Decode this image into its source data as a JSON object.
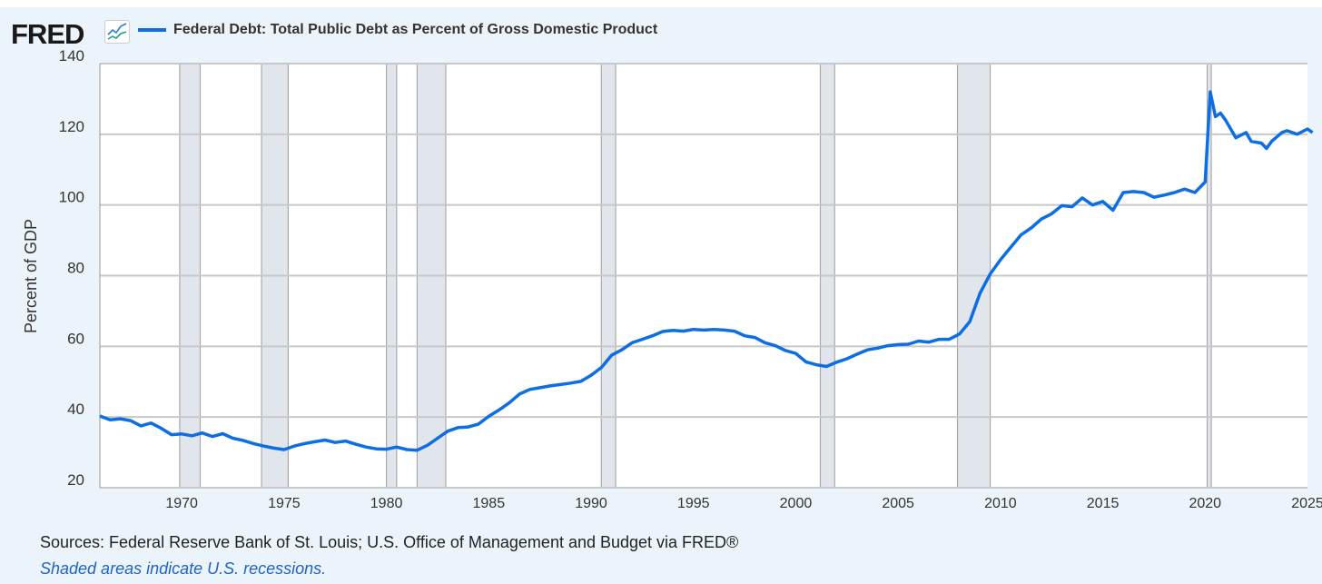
{
  "logo": "FRED",
  "colors": {
    "line": "#0d6ee4",
    "recession": "#e1e6ec",
    "background": "#ebf3fb"
  },
  "footer": {
    "sources": "Sources: Federal Reserve Bank of St. Louis; U.S. Office of Management and Budget via FRED®",
    "note": "Shaded areas indicate U.S. recessions."
  },
  "chart_data": {
    "type": "line",
    "title": "Federal Debt: Total Public Debt as Percent of Gross Domestic Product",
    "xlabel": "",
    "ylabel": "Percent of GDP",
    "xlim": [
      1966,
      2025
    ],
    "ylim": [
      20,
      140
    ],
    "xticks": [
      1970,
      1975,
      1980,
      1985,
      1990,
      1995,
      2000,
      2005,
      2010,
      2015,
      2020,
      2025
    ],
    "yticks": [
      20,
      40,
      60,
      80,
      100,
      120,
      140
    ],
    "grid": true,
    "legend": "top-left",
    "recessions": [
      [
        1969.9,
        1970.9
      ],
      [
        1973.9,
        1975.2
      ],
      [
        1980.0,
        1980.5
      ],
      [
        1981.5,
        1982.9
      ],
      [
        1990.5,
        1991.2
      ],
      [
        2001.2,
        2001.9
      ],
      [
        2007.9,
        2009.5
      ],
      [
        2020.1,
        2020.3
      ]
    ],
    "series": [
      {
        "name": "Federal Debt: Total Public Debt as Percent of Gross Domestic Product",
        "x": [
          1966,
          1966.5,
          1967,
          1967.5,
          1968,
          1968.5,
          1969,
          1969.5,
          1970,
          1970.5,
          1971,
          1971.5,
          1972,
          1972.5,
          1973,
          1973.5,
          1974,
          1974.5,
          1975,
          1975.5,
          1976,
          1976.5,
          1977,
          1977.5,
          1978,
          1978.5,
          1979,
          1979.5,
          1980,
          1980.5,
          1981,
          1981.5,
          1982,
          1982.5,
          1983,
          1983.5,
          1984,
          1984.5,
          1985,
          1985.5,
          1986,
          1986.5,
          1987,
          1987.5,
          1988,
          1988.5,
          1989,
          1989.5,
          1990,
          1990.5,
          1991,
          1991.5,
          1992,
          1992.5,
          1993,
          1993.5,
          1994,
          1994.5,
          1995,
          1995.5,
          1996,
          1996.5,
          1997,
          1997.5,
          1998,
          1998.5,
          1999,
          1999.5,
          2000,
          2000.5,
          2001,
          2001.5,
          2002,
          2002.5,
          2003,
          2003.5,
          2004,
          2004.5,
          2005,
          2005.5,
          2006,
          2006.5,
          2007,
          2007.5,
          2008,
          2008.5,
          2009,
          2009.5,
          2010,
          2010.5,
          2011,
          2011.5,
          2012,
          2012.5,
          2013,
          2013.5,
          2014,
          2014.5,
          2015,
          2015.5,
          2016,
          2016.5,
          2017,
          2017.5,
          2018,
          2018.5,
          2019,
          2019.5,
          2020,
          2020.25,
          2020.5,
          2020.75,
          2021,
          2021.5,
          2022,
          2022.25,
          2022.75,
          2023,
          2023.25,
          2023.75,
          2024,
          2024.5,
          2025,
          2025.25
        ],
        "values": [
          40.3,
          39.2,
          39.5,
          39,
          37.5,
          38.3,
          36.8,
          35,
          35.2,
          34.7,
          35.5,
          34.5,
          35.3,
          34,
          33.4,
          32.5,
          31.8,
          31.2,
          30.8,
          31.8,
          32.5,
          33,
          33.5,
          32.8,
          33.2,
          32.3,
          31.5,
          31,
          30.9,
          31.5,
          30.8,
          30.6,
          32,
          34,
          36,
          37,
          37.2,
          38,
          40.2,
          42,
          44,
          46.5,
          47.8,
          48.3,
          48.8,
          49.2,
          49.6,
          50.1,
          51.8,
          54,
          57.5,
          59,
          61,
          62,
          63,
          64.2,
          64.5,
          64.3,
          64.8,
          64.6,
          64.8,
          64.6,
          64.3,
          63,
          62.5,
          61,
          60.2,
          58.8,
          58,
          55.6,
          54.8,
          54.3,
          55.5,
          56.5,
          57.8,
          59,
          59.5,
          60.2,
          60.5,
          60.6,
          61.5,
          61.2,
          62,
          62,
          63.5,
          67,
          75,
          80.5,
          84.5,
          88,
          91.5,
          93.5,
          96,
          97.5,
          99.8,
          99.5,
          102,
          100,
          101,
          98.5,
          103.5,
          103.8,
          103.5,
          102.2,
          102.8,
          103.5,
          104.5,
          103.5,
          106.5,
          132,
          125,
          126,
          124,
          119,
          120.5,
          118,
          117.5,
          116,
          118,
          120.5,
          121,
          120,
          121.5,
          120.5
        ]
      }
    ]
  }
}
